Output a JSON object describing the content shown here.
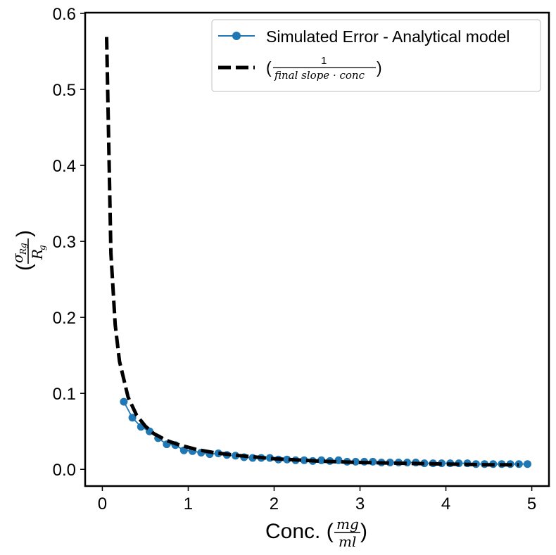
{
  "chart_data": {
    "type": "line",
    "xlabel": "Conc. (mg/ml)",
    "ylabel": "(σ_Rg / R_g)",
    "xlabel_parts": {
      "prefix": "Conc. (",
      "numerator": "mg",
      "denominator": "ml",
      "suffix": ")"
    },
    "ylabel_parts": {
      "numerator": "σ",
      "numerator_sub": "Rg",
      "denominator": "R",
      "denominator_sub": "g"
    },
    "xlim": [
      -0.2,
      5.2
    ],
    "ylim": [
      -0.022,
      0.601
    ],
    "x_ticks": [
      0,
      1,
      2,
      3,
      4,
      5
    ],
    "y_ticks": [
      0.0,
      0.1,
      0.2,
      0.3,
      0.4,
      0.5,
      0.6
    ],
    "x_tick_labels": [
      "0",
      "1",
      "2",
      "3",
      "4",
      "5"
    ],
    "y_tick_labels": [
      "0.0",
      "0.1",
      "0.2",
      "0.3",
      "0.4",
      "0.5",
      "0.6"
    ],
    "grid": false,
    "legend_position": "top-right",
    "series": [
      {
        "name": "Simulated Error - Analytical model",
        "style": "line-marker",
        "color": "#1f77b4",
        "x": [
          0.25,
          0.35,
          0.45,
          0.55,
          0.65,
          0.75,
          0.85,
          0.95,
          1.05,
          1.15,
          1.25,
          1.35,
          1.45,
          1.55,
          1.65,
          1.75,
          1.85,
          1.95,
          2.05,
          2.15,
          2.25,
          2.35,
          2.45,
          2.55,
          2.65,
          2.75,
          2.85,
          2.95,
          3.05,
          3.15,
          3.25,
          3.35,
          3.45,
          3.55,
          3.65,
          3.75,
          3.85,
          3.95,
          4.05,
          4.15,
          4.25,
          4.35,
          4.45,
          4.55,
          4.65,
          4.75,
          4.85,
          4.95
        ],
        "y": [
          0.089,
          0.068,
          0.056,
          0.05,
          0.041,
          0.033,
          0.032,
          0.025,
          0.024,
          0.022,
          0.02,
          0.021,
          0.019,
          0.018,
          0.016,
          0.015,
          0.015,
          0.015,
          0.013,
          0.013,
          0.012,
          0.012,
          0.011,
          0.012,
          0.011,
          0.012,
          0.01,
          0.01,
          0.01,
          0.01,
          0.009,
          0.009,
          0.009,
          0.009,
          0.009,
          0.008,
          0.008,
          0.008,
          0.008,
          0.008,
          0.008,
          0.007,
          0.007,
          0.007,
          0.007,
          0.007,
          0.007,
          0.007
        ]
      },
      {
        "name": "(1 / final slope · conc)",
        "name_parts": {
          "numerator": "1",
          "denominator": "final slope · conc"
        },
        "style": "dashed",
        "color": "#000000",
        "function": "0.0284 / x",
        "x": [
          0.05,
          0.1,
          0.15,
          0.2,
          0.3,
          0.4,
          0.5,
          0.6,
          0.75,
          0.9,
          1.1,
          1.3,
          1.6,
          2.0,
          2.5,
          3.0,
          3.5,
          4.0,
          4.5,
          4.85
        ],
        "y": [
          0.569,
          0.284,
          0.19,
          0.142,
          0.095,
          0.071,
          0.057,
          0.047,
          0.038,
          0.032,
          0.026,
          0.022,
          0.018,
          0.014,
          0.011,
          0.009,
          0.008,
          0.007,
          0.006,
          0.006
        ]
      }
    ]
  }
}
